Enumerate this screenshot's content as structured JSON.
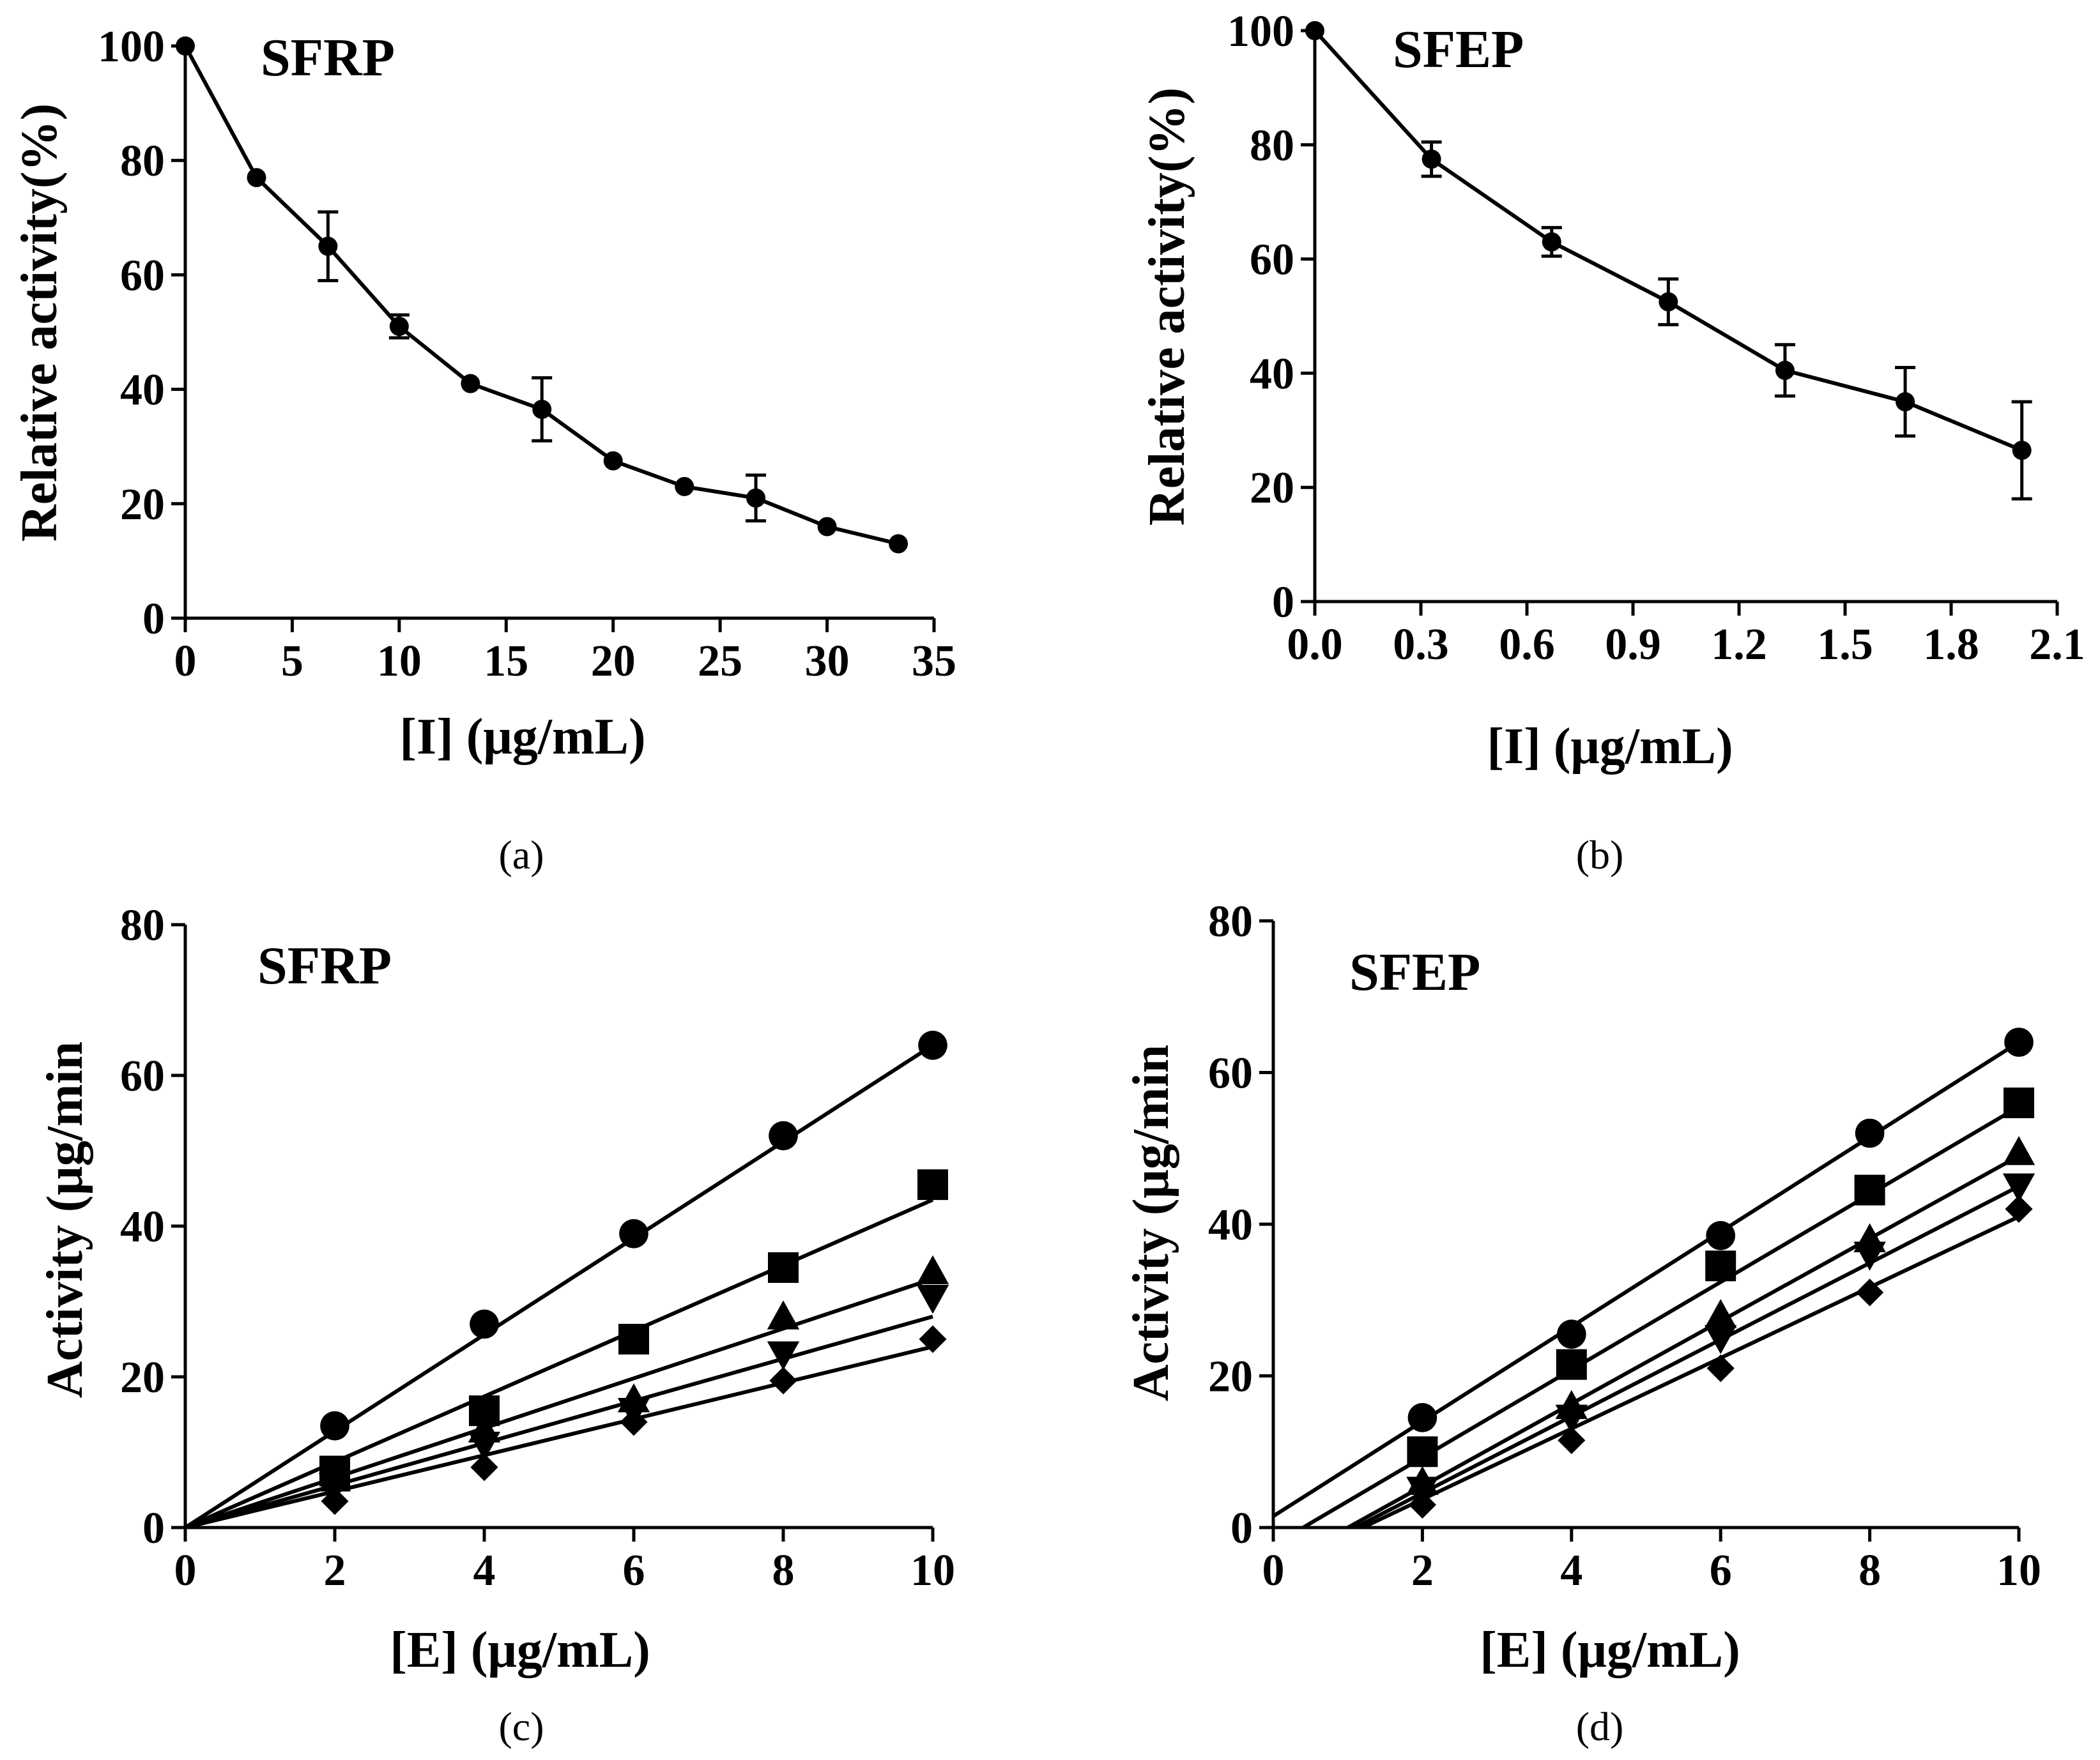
{
  "chart_data": [
    {
      "panel": "a",
      "type": "line",
      "caption": "(a)",
      "title": "SFRP",
      "xlabel": "[I] (μg/mL)",
      "ylabel": "Relative activity(%)",
      "xlim": [
        0,
        35
      ],
      "ylim": [
        0,
        100
      ],
      "xticks": [
        0,
        5,
        10,
        15,
        20,
        25,
        30,
        35
      ],
      "xtick_labels": [
        "0",
        "5",
        "10",
        "15",
        "20",
        "25",
        "30",
        "35"
      ],
      "yticks": [
        0,
        20,
        40,
        60,
        80,
        100
      ],
      "ytick_labels": [
        "0",
        "20",
        "40",
        "60",
        "80",
        "100"
      ],
      "series": [
        {
          "x": [
            0,
            3.33,
            6.67,
            10,
            13.33,
            16.67,
            20,
            23.33,
            26.67,
            30,
            33.33
          ],
          "y": [
            100,
            77,
            65,
            51,
            41,
            36.5,
            27.5,
            23,
            21,
            16,
            13
          ],
          "err": [
            0,
            0,
            6,
            2,
            0,
            5.5,
            0,
            0,
            4,
            0,
            0
          ]
        }
      ]
    },
    {
      "panel": "b",
      "type": "line",
      "caption": "(b)",
      "title": "SFEP",
      "xlabel": "[I] (μg/mL)",
      "ylabel": "Relative activity(%)",
      "xlim": [
        0,
        2.1
      ],
      "ylim": [
        0,
        100
      ],
      "xticks": [
        0,
        0.3,
        0.6,
        0.9,
        1.2,
        1.5,
        1.8,
        2.1
      ],
      "xtick_labels": [
        "0.0",
        "0.3",
        "0.6",
        "0.9",
        "1.2",
        "1.5",
        "1.8",
        "2.1"
      ],
      "yticks": [
        0,
        20,
        40,
        60,
        80,
        100
      ],
      "ytick_labels": [
        "0",
        "20",
        "40",
        "60",
        "80",
        "100"
      ],
      "series": [
        {
          "x": [
            0,
            0.33,
            0.67,
            1.0,
            1.33,
            1.67,
            2.0
          ],
          "y": [
            100,
            77.5,
            63,
            52.5,
            40.5,
            35,
            26.5
          ],
          "err": [
            0,
            3,
            2.5,
            4,
            4.5,
            6,
            8.5
          ]
        }
      ]
    },
    {
      "panel": "c",
      "type": "scatter",
      "caption": "(c)",
      "title": "SFRP",
      "xlabel": "[E] (μg/mL)",
      "ylabel": "Activity (μg/min",
      "xlim": [
        0,
        10
      ],
      "ylim": [
        0,
        80
      ],
      "xticks": [
        0,
        2,
        4,
        6,
        8,
        10
      ],
      "xtick_labels": [
        "0",
        "2",
        "4",
        "6",
        "8",
        "10"
      ],
      "yticks": [
        0,
        20,
        40,
        60,
        80
      ],
      "ytick_labels": [
        "0",
        "20",
        "40",
        "60",
        "80"
      ],
      "series": [
        {
          "marker": "circle",
          "x": [
            2,
            4,
            6,
            8,
            10
          ],
          "y": [
            13.5,
            27,
            39,
            52,
            64
          ],
          "fit": [
            [
              0,
              0
            ],
            [
              10,
              64
            ]
          ]
        },
        {
          "marker": "square",
          "x": [
            2,
            4,
            6,
            8,
            10
          ],
          "y": [
            7.5,
            15.5,
            25,
            34.5,
            45.5
          ],
          "fit": [
            [
              0,
              0
            ],
            [
              10,
              43.5
            ]
          ]
        },
        {
          "marker": "triangle-up",
          "x": [
            2,
            4,
            6,
            8,
            10
          ],
          "y": [
            6.5,
            13,
            17,
            28,
            34
          ],
          "fit": [
            [
              0,
              0
            ],
            [
              10,
              33
            ]
          ]
        },
        {
          "marker": "triangle-down",
          "x": [
            2,
            4,
            6,
            8,
            10
          ],
          "y": [
            5.5,
            11,
            15.5,
            23,
            30.5
          ],
          "fit": [
            [
              0,
              0
            ],
            [
              10,
              28
            ]
          ]
        },
        {
          "marker": "diamond",
          "x": [
            2,
            4,
            6,
            8,
            10
          ],
          "y": [
            3.5,
            8,
            14,
            19.5,
            25
          ],
          "fit": [
            [
              0,
              0
            ],
            [
              10,
              24
            ]
          ]
        }
      ]
    },
    {
      "panel": "d",
      "type": "scatter",
      "caption": "(d)",
      "title": "SFEP",
      "xlabel": "[E] (μg/mL)",
      "ylabel": "Activity (μg/min",
      "xlim": [
        0,
        10
      ],
      "ylim": [
        0,
        80
      ],
      "xticks": [
        0,
        2,
        4,
        6,
        8,
        10
      ],
      "xtick_labels": [
        "0",
        "2",
        "4",
        "6",
        "8",
        "10"
      ],
      "yticks": [
        0,
        20,
        40,
        60,
        80
      ],
      "ytick_labels": [
        "0",
        "20",
        "40",
        "60",
        "80"
      ],
      "series": [
        {
          "marker": "circle",
          "x": [
            2,
            4,
            6,
            8,
            10
          ],
          "y": [
            14.5,
            25.5,
            38.5,
            52,
            64
          ],
          "fit": [
            [
              0,
              1.5
            ],
            [
              10,
              64
            ]
          ]
        },
        {
          "marker": "square",
          "x": [
            2,
            4,
            6,
            8,
            10
          ],
          "y": [
            10,
            21.5,
            34.5,
            44.5,
            56
          ],
          "fit": [
            [
              0.4,
              0
            ],
            [
              10,
              55.5
            ]
          ]
        },
        {
          "marker": "triangle-up",
          "x": [
            2,
            4,
            6,
            8,
            10
          ],
          "y": [
            6,
            16,
            28,
            38,
            49.5
          ],
          "fit": [
            [
              1,
              0
            ],
            [
              10,
              49
            ]
          ]
        },
        {
          "marker": "triangle-down",
          "x": [
            2,
            4,
            6,
            8,
            10
          ],
          "y": [
            5,
            14.5,
            25,
            36,
            45
          ],
          "fit": [
            [
              1.1,
              0
            ],
            [
              10,
              45
            ]
          ]
        },
        {
          "marker": "diamond",
          "x": [
            2,
            4,
            6,
            8,
            10
          ],
          "y": [
            3,
            11.5,
            21,
            31,
            42
          ],
          "fit": [
            [
              1.2,
              0
            ],
            [
              10,
              41
            ]
          ]
        }
      ]
    }
  ]
}
